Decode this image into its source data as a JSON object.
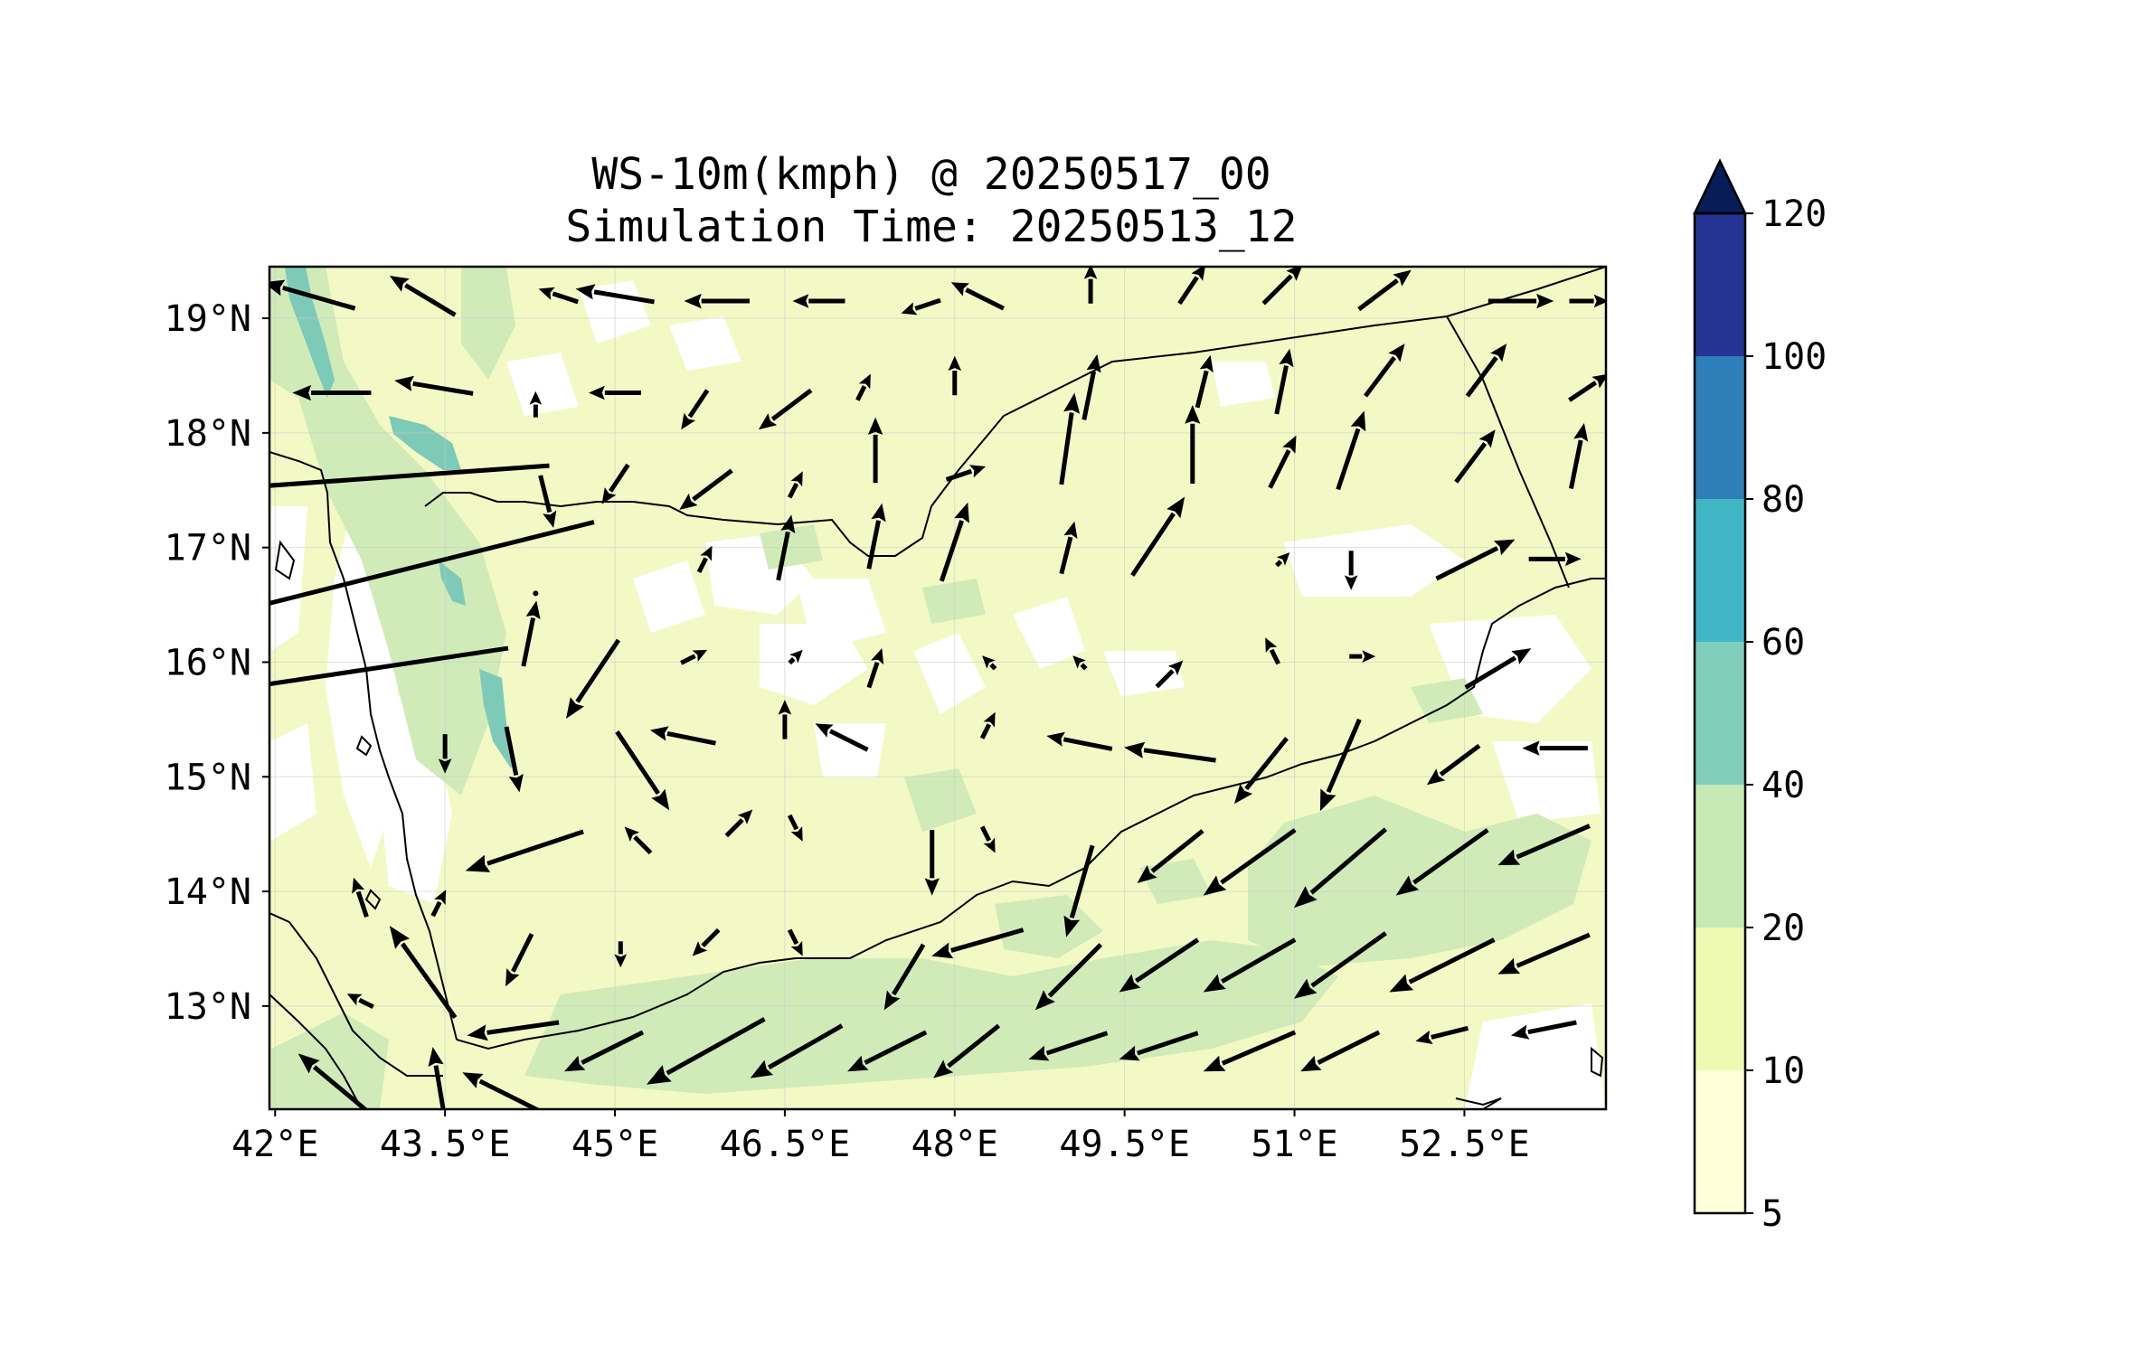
{
  "title_line1": "WS-10m(kmph) @ 20250517_00",
  "title_line2": "Simulation Time: 20250513_12",
  "map": {
    "lon_range": [
      41.95,
      53.75
    ],
    "lat_range": [
      12.1,
      19.45
    ],
    "x_ticks": [
      {
        "value": 42.0,
        "label": "42°E"
      },
      {
        "value": 43.5,
        "label": "43.5°E"
      },
      {
        "value": 45.0,
        "label": "45°E"
      },
      {
        "value": 46.5,
        "label": "46.5°E"
      },
      {
        "value": 48.0,
        "label": "48°E"
      },
      {
        "value": 49.5,
        "label": "49.5°E"
      },
      {
        "value": 51.0,
        "label": "51°E"
      },
      {
        "value": 52.5,
        "label": "52.5°E"
      }
    ],
    "y_ticks": [
      {
        "value": 19,
        "label": "19°N"
      },
      {
        "value": 18,
        "label": "18°N"
      },
      {
        "value": 17,
        "label": "17°N"
      },
      {
        "value": 16,
        "label": "16°N"
      },
      {
        "value": 15,
        "label": "15°N"
      },
      {
        "value": 14,
        "label": "14°N"
      },
      {
        "value": 13,
        "label": "13°N"
      }
    ],
    "gridlines": true,
    "colors": {
      "land_base": "#f3f9c4",
      "sea": "#f3f9c4",
      "calm_patch": "#ffffff",
      "band_20_40": "#d0ebb8",
      "band_40_60": "#7ecab9",
      "arrow": "#000000",
      "coastline": "#000000"
    }
  },
  "colorbar": {
    "levels": [
      "5",
      "10",
      "20",
      "40",
      "60",
      "80",
      "100",
      "120"
    ],
    "colors": [
      "#ffffd9",
      "#edf8b1",
      "#c7e9b4",
      "#7fcdbb",
      "#41b6c4",
      "#2c7fb8",
      "#253494",
      "#081d58"
    ],
    "extend": "max"
  },
  "wind_vectors_note_units": "kmph",
  "wind_vectors": [
    {
      "lon": 42.3,
      "lat": 19.2,
      "u": -7,
      "v": 2
    },
    {
      "lon": 43.3,
      "lat": 19.2,
      "u": -5,
      "v": 3
    },
    {
      "lon": 44.5,
      "lat": 19.2,
      "u": -3,
      "v": 1
    },
    {
      "lon": 45.0,
      "lat": 19.2,
      "u": -6,
      "v": 1
    },
    {
      "lon": 45.9,
      "lat": 19.15,
      "u": -5,
      "v": 0
    },
    {
      "lon": 46.8,
      "lat": 19.15,
      "u": -4,
      "v": 0
    },
    {
      "lon": 47.7,
      "lat": 19.1,
      "u": -3,
      "v": -1
    },
    {
      "lon": 48.2,
      "lat": 19.2,
      "u": -4,
      "v": 2
    },
    {
      "lon": 49.2,
      "lat": 19.3,
      "u": 0,
      "v": 3
    },
    {
      "lon": 50.1,
      "lat": 19.3,
      "u": 2,
      "v": 3
    },
    {
      "lon": 50.9,
      "lat": 19.3,
      "u": 3,
      "v": 3
    },
    {
      "lon": 51.8,
      "lat": 19.25,
      "u": 4,
      "v": 3
    },
    {
      "lon": 53.0,
      "lat": 19.15,
      "u": 5,
      "v": 0
    },
    {
      "lon": 53.6,
      "lat": 19.15,
      "u": 3,
      "v": 0
    },
    {
      "lon": 42.5,
      "lat": 18.35,
      "u": -6,
      "v": 0
    },
    {
      "lon": 43.4,
      "lat": 18.4,
      "u": -6,
      "v": 1
    },
    {
      "lon": 44.3,
      "lat": 18.25,
      "u": 0,
      "v": 2
    },
    {
      "lon": 45.0,
      "lat": 18.35,
      "u": -4,
      "v": 0
    },
    {
      "lon": 45.7,
      "lat": 18.2,
      "u": -2,
      "v": -3
    },
    {
      "lon": 46.5,
      "lat": 18.2,
      "u": -4,
      "v": -3
    },
    {
      "lon": 47.2,
      "lat": 18.4,
      "u": 1,
      "v": 2
    },
    {
      "lon": 48.0,
      "lat": 18.5,
      "u": 0,
      "v": 3
    },
    {
      "lon": 49.2,
      "lat": 18.4,
      "u": 1,
      "v": 5
    },
    {
      "lon": 50.2,
      "lat": 18.45,
      "u": 1,
      "v": 4
    },
    {
      "lon": 50.9,
      "lat": 18.45,
      "u": 1,
      "v": 5
    },
    {
      "lon": 51.8,
      "lat": 18.55,
      "u": 3,
      "v": 4
    },
    {
      "lon": 52.7,
      "lat": 18.55,
      "u": 3,
      "v": 4
    },
    {
      "lon": 53.6,
      "lat": 18.4,
      "u": 3,
      "v": 2
    },
    {
      "lon": 42.8,
      "lat": 17.6,
      "u": -28,
      "v": -2
    },
    {
      "lon": 44.4,
      "lat": 17.4,
      "u": 1,
      "v": -4
    },
    {
      "lon": 45.0,
      "lat": 17.55,
      "u": -2,
      "v": -3
    },
    {
      "lon": 45.8,
      "lat": 17.5,
      "u": -4,
      "v": -3
    },
    {
      "lon": 46.6,
      "lat": 17.55,
      "u": 1,
      "v": 2
    },
    {
      "lon": 47.3,
      "lat": 17.85,
      "u": 0,
      "v": 5
    },
    {
      "lon": 48.1,
      "lat": 17.65,
      "u": 3,
      "v": 1
    },
    {
      "lon": 49.0,
      "lat": 17.95,
      "u": 1,
      "v": 7
    },
    {
      "lon": 50.1,
      "lat": 17.9,
      "u": 0,
      "v": 6
    },
    {
      "lon": 50.9,
      "lat": 17.75,
      "u": 2,
      "v": 4
    },
    {
      "lon": 51.5,
      "lat": 17.85,
      "u": 2,
      "v": 6
    },
    {
      "lon": 52.6,
      "lat": 17.8,
      "u": 3,
      "v": 4
    },
    {
      "lon": 53.5,
      "lat": 17.8,
      "u": 1,
      "v": 5
    },
    {
      "lon": 42.5,
      "lat": 16.65,
      "u": -40,
      "v": -10
    },
    {
      "lon": 44.3,
      "lat": 16.6,
      "u": 0,
      "v": 0
    },
    {
      "lon": 45.8,
      "lat": 16.9,
      "u": 1,
      "v": 2
    },
    {
      "lon": 46.5,
      "lat": 17.0,
      "u": 1,
      "v": 5
    },
    {
      "lon": 47.3,
      "lat": 17.1,
      "u": 1,
      "v": 5
    },
    {
      "lon": 48.0,
      "lat": 17.05,
      "u": 2,
      "v": 6
    },
    {
      "lon": 49.0,
      "lat": 17.0,
      "u": 1,
      "v": 4
    },
    {
      "lon": 49.8,
      "lat": 17.1,
      "u": 4,
      "v": 6
    },
    {
      "lon": 50.9,
      "lat": 16.9,
      "u": 1,
      "v": 1
    },
    {
      "lon": 51.5,
      "lat": 16.8,
      "u": 0,
      "v": -3
    },
    {
      "lon": 52.6,
      "lat": 16.9,
      "u": 6,
      "v": 3
    },
    {
      "lon": 53.3,
      "lat": 16.9,
      "u": 4,
      "v": 0
    },
    {
      "lon": 42.9,
      "lat": 15.95,
      "u": -20,
      "v": -3
    },
    {
      "lon": 44.25,
      "lat": 16.25,
      "u": 1,
      "v": 5
    },
    {
      "lon": 44.8,
      "lat": 15.85,
      "u": -4,
      "v": -6
    },
    {
      "lon": 45.7,
      "lat": 16.05,
      "u": 2,
      "v": 1
    },
    {
      "lon": 46.6,
      "lat": 16.05,
      "u": 1,
      "v": 1
    },
    {
      "lon": 47.3,
      "lat": 15.95,
      "u": 1,
      "v": 3
    },
    {
      "lon": 48.3,
      "lat": 16.0,
      "u": -1,
      "v": 1
    },
    {
      "lon": 49.1,
      "lat": 16.0,
      "u": -1,
      "v": 1
    },
    {
      "lon": 49.9,
      "lat": 15.9,
      "u": 2,
      "v": 2
    },
    {
      "lon": 50.8,
      "lat": 16.1,
      "u": -1,
      "v": 2
    },
    {
      "lon": 51.6,
      "lat": 16.05,
      "u": 2,
      "v": 0
    },
    {
      "lon": 52.8,
      "lat": 15.95,
      "u": 5,
      "v": 3
    },
    {
      "lon": 44.1,
      "lat": 15.15,
      "u": 1,
      "v": -5
    },
    {
      "lon": 45.25,
      "lat": 15.05,
      "u": 4,
      "v": -6
    },
    {
      "lon": 45.6,
      "lat": 15.35,
      "u": -5,
      "v": 1
    },
    {
      "lon": 46.5,
      "lat": 15.5,
      "u": 0,
      "v": 3
    },
    {
      "lon": 47.0,
      "lat": 15.35,
      "u": -4,
      "v": 2
    },
    {
      "lon": 48.3,
      "lat": 15.45,
      "u": 1,
      "v": 2
    },
    {
      "lon": 49.1,
      "lat": 15.3,
      "u": -5,
      "v": 1
    },
    {
      "lon": 49.9,
      "lat": 15.2,
      "u": -7,
      "v": 1
    },
    {
      "lon": 50.7,
      "lat": 15.05,
      "u": -4,
      "v": -5
    },
    {
      "lon": 51.4,
      "lat": 15.1,
      "u": -3,
      "v": -7
    },
    {
      "lon": 52.4,
      "lat": 15.1,
      "u": -4,
      "v": -3
    },
    {
      "lon": 53.3,
      "lat": 15.25,
      "u": -5,
      "v": 0
    },
    {
      "lon": 43.5,
      "lat": 15.2,
      "u": 0,
      "v": -3
    },
    {
      "lon": 44.2,
      "lat": 14.35,
      "u": -9,
      "v": -3
    },
    {
      "lon": 45.2,
      "lat": 14.45,
      "u": -2,
      "v": 2
    },
    {
      "lon": 46.1,
      "lat": 14.6,
      "u": 2,
      "v": 2
    },
    {
      "lon": 46.6,
      "lat": 14.55,
      "u": 1,
      "v": -2
    },
    {
      "lon": 47.8,
      "lat": 14.25,
      "u": 0,
      "v": -5
    },
    {
      "lon": 48.3,
      "lat": 14.45,
      "u": 1,
      "v": -2
    },
    {
      "lon": 49.1,
      "lat": 14.0,
      "u": -2,
      "v": -7
    },
    {
      "lon": 49.9,
      "lat": 14.3,
      "u": -5,
      "v": -4
    },
    {
      "lon": 50.6,
      "lat": 14.25,
      "u": -7,
      "v": -5
    },
    {
      "lon": 51.4,
      "lat": 14.2,
      "u": -7,
      "v": -6
    },
    {
      "lon": 52.3,
      "lat": 14.25,
      "u": -7,
      "v": -5
    },
    {
      "lon": 53.2,
      "lat": 14.4,
      "u": -7,
      "v": -3
    },
    {
      "lon": 42.75,
      "lat": 13.95,
      "u": -1,
      "v": 3
    },
    {
      "lon": 43.45,
      "lat": 13.9,
      "u": 1,
      "v": 2
    },
    {
      "lon": 44.15,
      "lat": 13.4,
      "u": -2,
      "v": -4
    },
    {
      "lon": 45.05,
      "lat": 13.45,
      "u": 0,
      "v": -2
    },
    {
      "lon": 45.8,
      "lat": 13.55,
      "u": -2,
      "v": -2
    },
    {
      "lon": 46.6,
      "lat": 13.55,
      "u": 1,
      "v": -2
    },
    {
      "lon": 47.55,
      "lat": 13.25,
      "u": -3,
      "v": -5
    },
    {
      "lon": 48.2,
      "lat": 13.55,
      "u": -7,
      "v": -2
    },
    {
      "lon": 49.0,
      "lat": 13.25,
      "u": -5,
      "v": -5
    },
    {
      "lon": 49.8,
      "lat": 13.35,
      "u": -6,
      "v": -4
    },
    {
      "lon": 50.6,
      "lat": 13.35,
      "u": -7,
      "v": -4
    },
    {
      "lon": 51.4,
      "lat": 13.35,
      "u": -7,
      "v": -5
    },
    {
      "lon": 52.3,
      "lat": 13.35,
      "u": -8,
      "v": -4
    },
    {
      "lon": 53.2,
      "lat": 13.45,
      "u": -7,
      "v": -3
    },
    {
      "lon": 42.75,
      "lat": 13.05,
      "u": -2,
      "v": 1
    },
    {
      "lon": 43.3,
      "lat": 13.3,
      "u": -5,
      "v": 7
    },
    {
      "lon": 44.1,
      "lat": 12.8,
      "u": -7,
      "v": -1
    },
    {
      "lon": 44.9,
      "lat": 12.6,
      "u": -6,
      "v": -3
    },
    {
      "lon": 45.8,
      "lat": 12.6,
      "u": -9,
      "v": -5
    },
    {
      "lon": 46.6,
      "lat": 12.6,
      "u": -7,
      "v": -4
    },
    {
      "lon": 47.4,
      "lat": 12.6,
      "u": -6,
      "v": -3
    },
    {
      "lon": 48.1,
      "lat": 12.6,
      "u": -5,
      "v": -4
    },
    {
      "lon": 49.0,
      "lat": 12.65,
      "u": -6,
      "v": -2
    },
    {
      "lon": 49.8,
      "lat": 12.65,
      "u": -6,
      "v": -2
    },
    {
      "lon": 50.6,
      "lat": 12.6,
      "u": -7,
      "v": -3
    },
    {
      "lon": 51.4,
      "lat": 12.6,
      "u": -6,
      "v": -3
    },
    {
      "lon": 52.3,
      "lat": 12.75,
      "u": -4,
      "v": -1
    },
    {
      "lon": 53.2,
      "lat": 12.8,
      "u": -5,
      "v": -1
    },
    {
      "lon": 42.55,
      "lat": 12.3,
      "u": -6,
      "v": 5
    },
    {
      "lon": 43.45,
      "lat": 12.3,
      "u": -1,
      "v": 6
    },
    {
      "lon": 44.0,
      "lat": 12.25,
      "u": -6,
      "v": 3
    }
  ]
}
